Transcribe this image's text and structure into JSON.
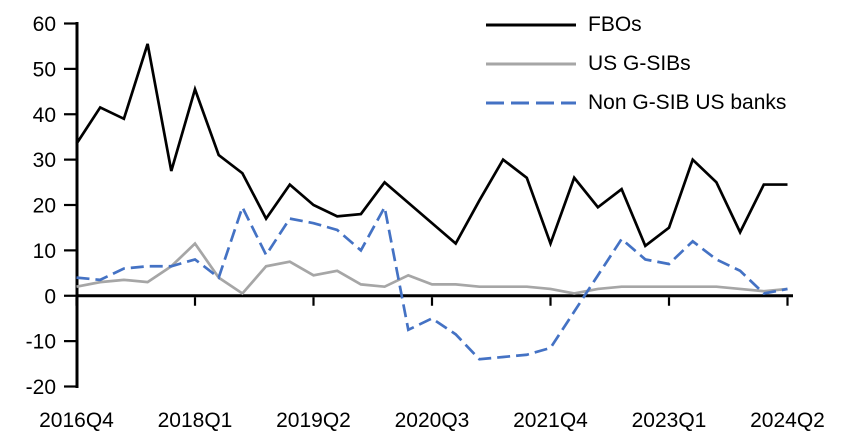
{
  "chart_data": {
    "type": "line",
    "title": "",
    "xlabel": "",
    "ylabel": "",
    "ylim": [
      -20,
      60
    ],
    "ytick_step": 10,
    "grid": false,
    "legend_position": "top-right",
    "categories": [
      "2016Q4",
      "2017Q1",
      "2017Q2",
      "2017Q3",
      "2017Q4",
      "2018Q1",
      "2018Q2",
      "2018Q3",
      "2018Q4",
      "2019Q1",
      "2019Q2",
      "2019Q3",
      "2019Q4",
      "2020Q1",
      "2020Q2",
      "2020Q3",
      "2020Q4",
      "2021Q1",
      "2021Q2",
      "2021Q3",
      "2021Q4",
      "2022Q1",
      "2022Q2",
      "2022Q3",
      "2022Q4",
      "2023Q1",
      "2023Q2",
      "2023Q3",
      "2023Q4",
      "2024Q1",
      "2024Q2"
    ],
    "x_tick_labels": [
      "2016Q4",
      "2018Q1",
      "2019Q2",
      "2020Q3",
      "2021Q4",
      "2023Q1",
      "2024Q2"
    ],
    "series": [
      {
        "name": "FBOs",
        "color": "#000000",
        "style": "solid",
        "values": [
          33.5,
          41.5,
          39,
          55.5,
          27.5,
          45.5,
          31,
          27,
          17,
          24.5,
          20,
          17.5,
          18,
          25,
          20.5,
          16,
          11.5,
          21,
          30,
          26,
          11.5,
          26,
          19.5,
          23.5,
          11,
          15,
          30,
          25,
          14,
          24.5,
          24.5
        ]
      },
      {
        "name": "US G-SIBs",
        "color": "#A6A6A6",
        "style": "solid",
        "values": [
          2,
          3,
          3.5,
          3,
          6.5,
          11.5,
          4,
          0.5,
          6.5,
          7.5,
          4.5,
          5.5,
          2.5,
          2,
          4.5,
          2.5,
          2.5,
          2,
          2,
          2,
          1.5,
          0.5,
          1.5,
          2,
          2,
          2,
          2,
          2,
          1.5,
          1,
          1.5
        ]
      },
      {
        "name": "Non G-SIB US banks",
        "color": "#4472C4",
        "style": "dashed",
        "values": [
          4,
          3.5,
          6,
          6.5,
          6.5,
          8,
          4,
          19.5,
          9,
          17,
          16,
          14.5,
          10,
          19.5,
          -7.5,
          -5,
          -8.5,
          -14,
          -13.5,
          -13,
          -11.5,
          -3.5,
          4.5,
          12.5,
          8,
          7,
          12,
          8,
          5.5,
          0.5,
          1.5
        ]
      }
    ]
  }
}
